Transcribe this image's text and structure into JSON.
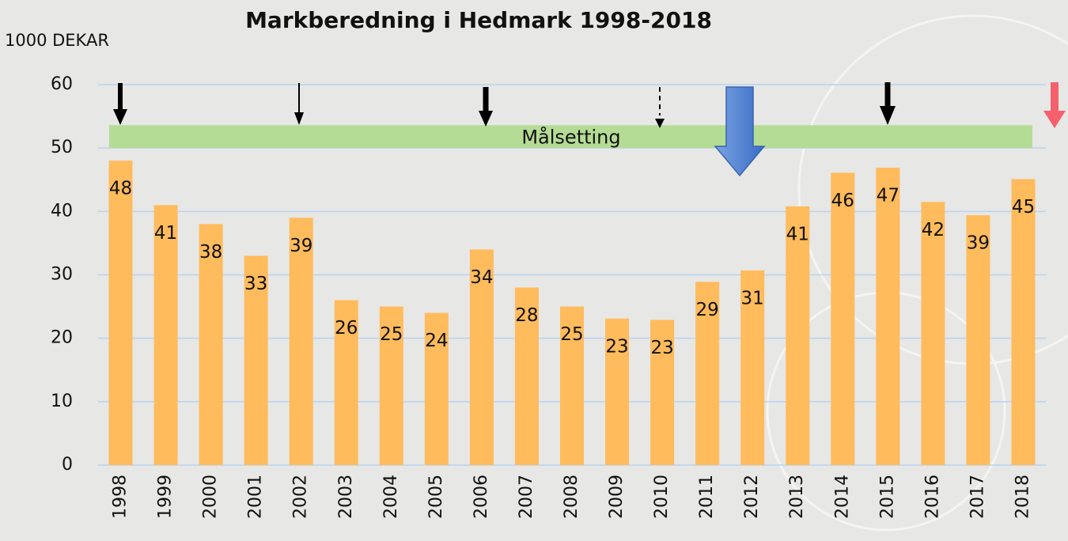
{
  "chart_data": {
    "type": "bar",
    "title": "Markberedning i Hedmark 1998-2018",
    "y_label": "1000 DEKAR",
    "categories": [
      "1998",
      "1999",
      "2000",
      "2001",
      "2002",
      "2003",
      "2004",
      "2005",
      "2006",
      "2007",
      "2008",
      "2009",
      "2010",
      "2011",
      "2012",
      "2013",
      "2014",
      "2015",
      "2016",
      "2017",
      "2018"
    ],
    "values": [
      48,
      41,
      38,
      33,
      39,
      26,
      25,
      24,
      34,
      28,
      25,
      23.1,
      22.9,
      28.9,
      30.7,
      40.8,
      46.1,
      46.9,
      41.5,
      39.4,
      45.1
    ],
    "value_labels": [
      "48",
      "41",
      "38",
      "33",
      "39",
      "26",
      "25",
      "24",
      "34",
      "28",
      "25",
      "23",
      "23",
      "29",
      "31",
      "41",
      "46",
      "47",
      "42",
      "39",
      "45"
    ],
    "color": "#ffbb5c",
    "ylim": [
      0,
      60
    ],
    "yticks": [
      0,
      10,
      20,
      30,
      40,
      50,
      60
    ],
    "grid": true,
    "target": {
      "label": "Målsetting",
      "range": [
        50,
        53.6
      ],
      "color": "#b5dc95"
    }
  }
}
